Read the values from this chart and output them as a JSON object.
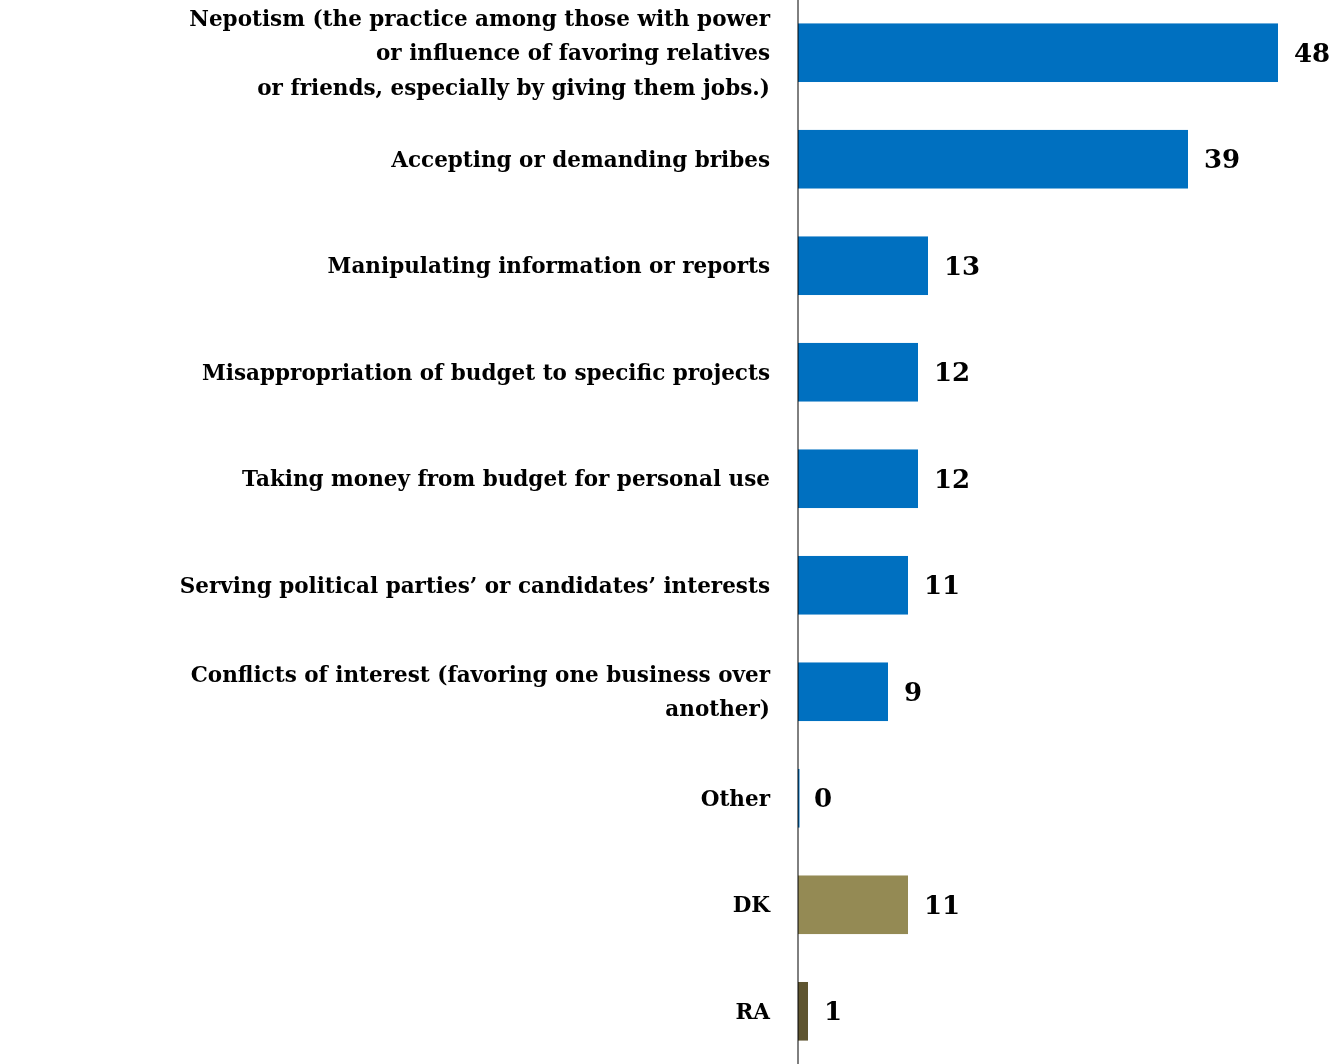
{
  "chart_data": {
    "type": "bar",
    "orientation": "horizontal",
    "data_labels": true,
    "categories": [
      "Nepotism (the practice among those with power\nor influence of favoring relatives\nor friends, especially by giving them jobs.)",
      "Accepting or demanding bribes",
      "Manipulating information or reports",
      "Misappropriation of budget to specific projects",
      "Taking money from budget for personal use",
      "Serving political parties’ or candidates’ interests",
      "Conflicts of interest (favoring one business over\nanother)",
      "Other",
      "DK",
      "RA"
    ],
    "values": [
      48,
      39,
      13,
      12,
      12,
      11,
      9,
      0,
      11,
      1
    ],
    "colors": [
      "#0070c0",
      "#0070c0",
      "#0070c0",
      "#0070c0",
      "#0070c0",
      "#0070c0",
      "#0070c0",
      "#0070c0",
      "#948a54",
      "#5f5530"
    ],
    "xlim": [
      0,
      54
    ]
  }
}
